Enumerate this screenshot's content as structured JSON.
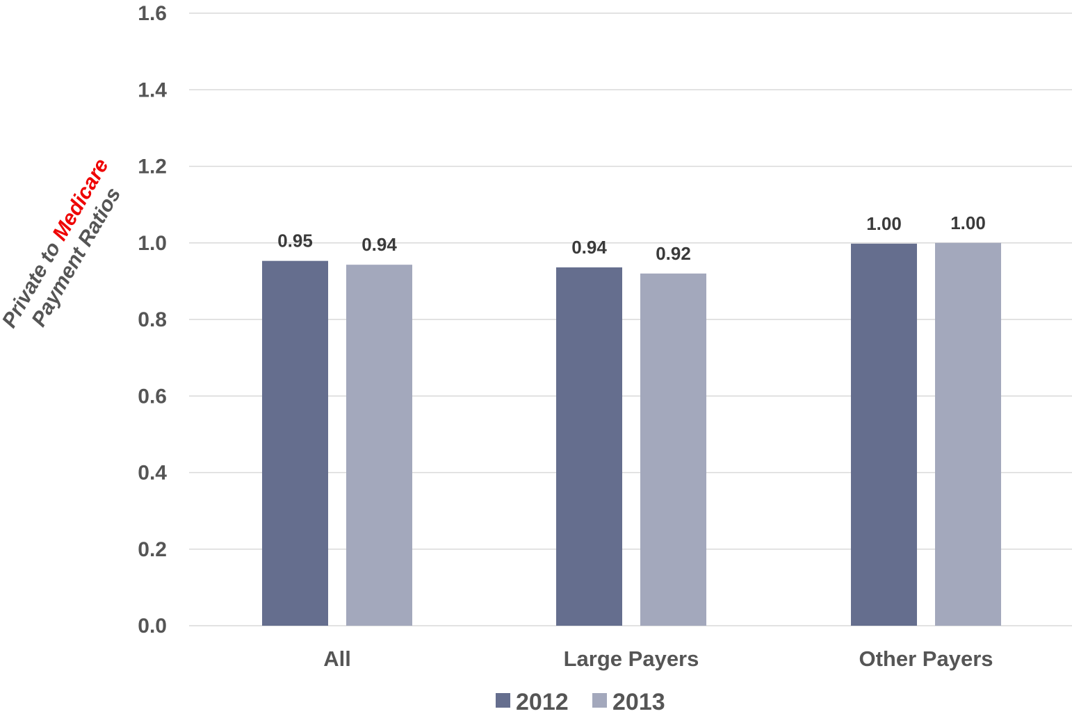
{
  "chart_data": {
    "type": "bar",
    "title": "",
    "xlabel": "",
    "ylabel_parts": [
      "Private to ",
      "Medicare",
      "Payment Ratios"
    ],
    "ylabel_highlight_color": "#ee0000",
    "categories": [
      "All",
      "Large Payers",
      "Other Payers"
    ],
    "series": [
      {
        "name": "2012",
        "color": "#656e8e",
        "values": [
          0.953,
          0.936,
          0.998
        ],
        "labels": [
          "0.95",
          "0.94",
          "1.00"
        ]
      },
      {
        "name": "2013",
        "color": "#a3a8bc",
        "values": [
          0.943,
          0.92,
          1.0
        ],
        "labels": [
          "0.94",
          "0.92",
          "1.00"
        ]
      }
    ],
    "ylim": [
      0,
      1.6
    ],
    "yticks": [
      "0.0",
      "0.2",
      "0.4",
      "0.6",
      "0.8",
      "1.0",
      "1.2",
      "1.4",
      "1.6"
    ],
    "grid": true,
    "gridline_color": "#d9d9d9",
    "legend_position": "bottom"
  }
}
